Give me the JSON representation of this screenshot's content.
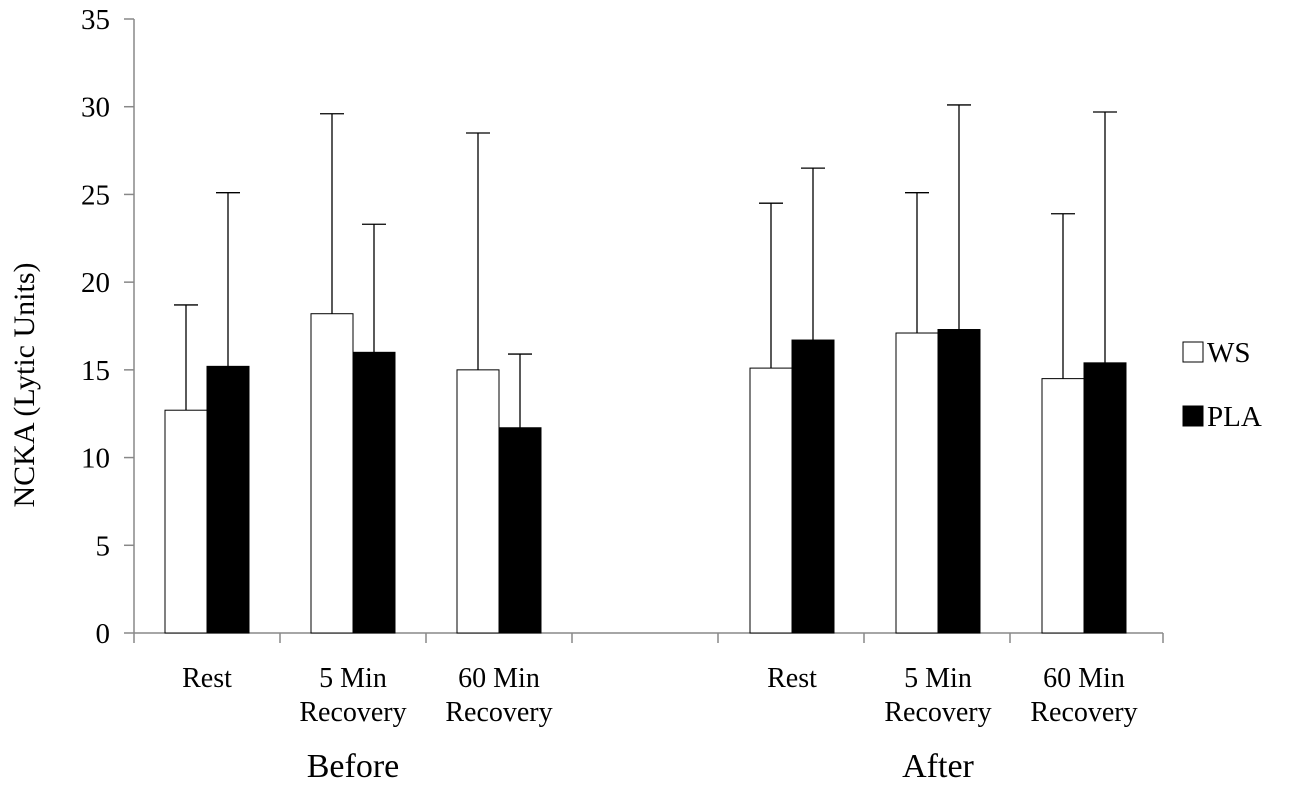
{
  "chart_data": {
    "type": "bar",
    "ylabel": "NCKA (Lytic Units)",
    "ylim": [
      0,
      35
    ],
    "yticks": [
      0,
      5,
      10,
      15,
      20,
      25,
      30,
      35
    ],
    "grid": false,
    "legend_position": "right",
    "error_bars": "upper",
    "groups": [
      {
        "label": "Before",
        "categories": [
          {
            "lines": [
              "Rest"
            ]
          },
          {
            "lines": [
              "5 Min",
              "Recovery"
            ]
          },
          {
            "lines": [
              "60 Min",
              "Recovery"
            ]
          }
        ]
      },
      {
        "label": "After",
        "categories": [
          {
            "lines": [
              "Rest"
            ]
          },
          {
            "lines": [
              "5 Min",
              "Recovery"
            ]
          },
          {
            "lines": [
              "60 Min",
              "Recovery"
            ]
          }
        ]
      }
    ],
    "series": [
      {
        "name": "WS",
        "fill": "#ffffff",
        "values": [
          12.7,
          18.2,
          15.0,
          15.1,
          17.1,
          14.5
        ],
        "error_upper": [
          18.7,
          29.6,
          28.5,
          24.5,
          25.1,
          23.9
        ]
      },
      {
        "name": "PLA",
        "fill": "#000000",
        "values": [
          15.2,
          16.0,
          11.7,
          16.7,
          17.3,
          15.4
        ],
        "error_upper": [
          25.1,
          23.3,
          15.9,
          26.5,
          30.1,
          29.7
        ]
      }
    ]
  }
}
